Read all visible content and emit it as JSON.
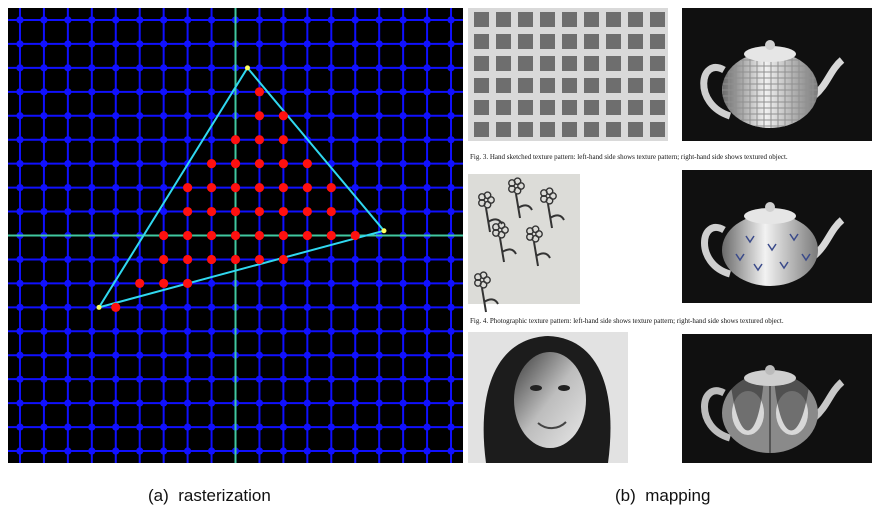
{
  "panel_a": {
    "caption": "(a)  rasterization",
    "colors": {
      "background": "#000000",
      "grid": "#1010ff",
      "axes": "#40c8a0",
      "triangle": "#30d8f0",
      "samples": "#ff1010"
    },
    "grid_count": 19,
    "triangle_vertices": [
      [
        10,
        2.5
      ],
      [
        15.7,
        9.3
      ],
      [
        3.8,
        12.5
      ]
    ],
    "covered_samples": [
      [
        10.5,
        3.5
      ],
      [
        10.5,
        4.5
      ],
      [
        11.5,
        4.5
      ],
      [
        9.5,
        5.5
      ],
      [
        10.5,
        5.5
      ],
      [
        11.5,
        5.5
      ],
      [
        8.5,
        6.5
      ],
      [
        9.5,
        6.5
      ],
      [
        10.5,
        6.5
      ],
      [
        11.5,
        6.5
      ],
      [
        12.5,
        6.5
      ],
      [
        7.5,
        7.5
      ],
      [
        8.5,
        7.5
      ],
      [
        9.5,
        7.5
      ],
      [
        10.5,
        7.5
      ],
      [
        11.5,
        7.5
      ],
      [
        12.5,
        7.5
      ],
      [
        13.5,
        7.5
      ],
      [
        7.5,
        8.5
      ],
      [
        8.5,
        8.5
      ],
      [
        9.5,
        8.5
      ],
      [
        10.5,
        8.5
      ],
      [
        11.5,
        8.5
      ],
      [
        12.5,
        8.5
      ],
      [
        13.5,
        8.5
      ],
      [
        6.5,
        9.5
      ],
      [
        7.5,
        9.5
      ],
      [
        8.5,
        9.5
      ],
      [
        9.5,
        9.5
      ],
      [
        10.5,
        9.5
      ],
      [
        11.5,
        9.5
      ],
      [
        12.5,
        9.5
      ],
      [
        13.5,
        9.5
      ],
      [
        14.5,
        9.5
      ],
      [
        6.5,
        10.5
      ],
      [
        7.5,
        10.5
      ],
      [
        8.5,
        10.5
      ],
      [
        9.5,
        10.5
      ],
      [
        10.5,
        10.5
      ],
      [
        11.5,
        10.5
      ],
      [
        5.5,
        11.5
      ],
      [
        6.5,
        11.5
      ],
      [
        7.5,
        11.5
      ],
      [
        4.5,
        12.5
      ]
    ]
  },
  "panel_b": {
    "caption": "(b)  mapping",
    "fig3": "Fig. 3.  Hand sketched texture pattern:  left-hand side shows texture pattern; right-hand side shows textured object.",
    "fig4": "Fig. 4.  Photographic texture pattern:  left-hand side shows texture pattern; right-hand side shows textured object."
  }
}
